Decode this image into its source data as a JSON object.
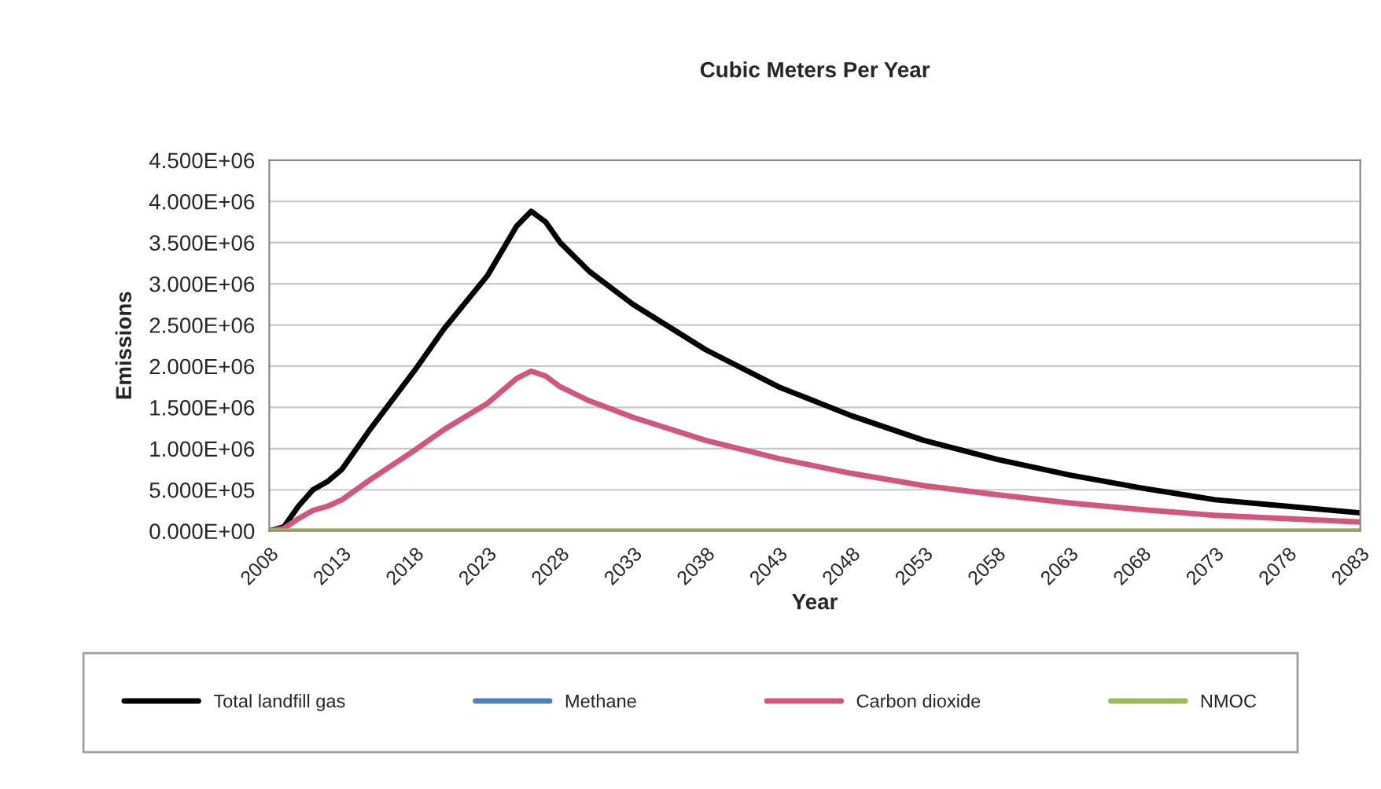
{
  "chart_data": {
    "type": "line",
    "title": "Cubic Meters Per Year",
    "xlabel": "Year",
    "ylabel": "Emissions",
    "x": [
      2008,
      2009,
      2010,
      2011,
      2012,
      2013,
      2015,
      2018,
      2020,
      2023,
      2025,
      2026,
      2027,
      2028,
      2030,
      2033,
      2038,
      2043,
      2048,
      2053,
      2058,
      2063,
      2068,
      2073,
      2078,
      2083
    ],
    "series": [
      {
        "name": "Total landfill gas",
        "color": "#000000",
        "values": [
          0,
          50000,
          300000,
          500000,
          600000,
          750000,
          1250000,
          1950000,
          2450000,
          3100000,
          3700000,
          3880000,
          3750000,
          3500000,
          3150000,
          2750000,
          2200000,
          1750000,
          1400000,
          1100000,
          870000,
          680000,
          520000,
          380000,
          300000,
          220000
        ]
      },
      {
        "name": "Methane",
        "color": "#4f81bd",
        "values": [
          null,
          null,
          null,
          null,
          null,
          null,
          null,
          null,
          null,
          null,
          null,
          null,
          null,
          null,
          null,
          null,
          null,
          null,
          null,
          null,
          null,
          null,
          null,
          null,
          null,
          null
        ]
      },
      {
        "name": "Carbon dioxide",
        "color": "#d2577c",
        "values": [
          0,
          30000,
          150000,
          250000,
          300000,
          380000,
          630000,
          980000,
          1230000,
          1550000,
          1850000,
          1940000,
          1880000,
          1750000,
          1580000,
          1380000,
          1100000,
          880000,
          700000,
          550000,
          440000,
          340000,
          260000,
          190000,
          150000,
          110000
        ]
      },
      {
        "name": "NMOC",
        "color": "#9bbb59",
        "values": [
          0,
          0,
          0,
          0,
          0,
          0,
          0,
          0,
          0,
          0,
          0,
          0,
          0,
          0,
          0,
          0,
          0,
          0,
          0,
          0,
          0,
          0,
          0,
          0,
          0,
          0
        ]
      }
    ],
    "xlim": [
      2008,
      2083
    ],
    "xticks": [
      2008,
      2013,
      2018,
      2023,
      2028,
      2033,
      2038,
      2043,
      2048,
      2053,
      2058,
      2063,
      2068,
      2073,
      2078,
      2083
    ],
    "ylim": [
      0,
      4500000
    ],
    "yticks": [
      {
        "value": 0,
        "label": "0.000E+00"
      },
      {
        "value": 500000,
        "label": "5.000E+05"
      },
      {
        "value": 1000000,
        "label": "1.000E+06"
      },
      {
        "value": 1500000,
        "label": "1.500E+06"
      },
      {
        "value": 2000000,
        "label": "2.000E+06"
      },
      {
        "value": 2500000,
        "label": "2.500E+06"
      },
      {
        "value": 3000000,
        "label": "3.000E+06"
      },
      {
        "value": 3500000,
        "label": "3.500E+06"
      },
      {
        "value": 4000000,
        "label": "4.000E+06"
      },
      {
        "value": 4500000,
        "label": "4.500E+06"
      }
    ],
    "grid": "y",
    "legend": "bottom",
    "marker": "none",
    "line_style": "solid"
  }
}
